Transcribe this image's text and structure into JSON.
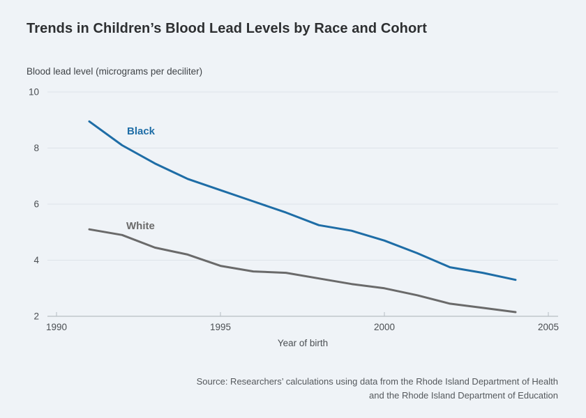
{
  "page": {
    "source_line1": "Source: Researchers’ calculations using data from the Rhode Island Department of Health",
    "source_line2": "and the Rhode Island Department of Education"
  },
  "chart_data": {
    "type": "line",
    "title": "Trends in Children’s Blood Lead Levels by Race and Cohort",
    "ylabel": "Blood lead level (micrograms per deciliter)",
    "xlabel": "Year of birth",
    "x": [
      1991,
      1992,
      1993,
      1994,
      1995,
      1996,
      1997,
      1998,
      1999,
      2000,
      2001,
      2002,
      2003,
      2004
    ],
    "series": [
      {
        "name": "Black",
        "color": "#1e6da6",
        "values": [
          8.95,
          8.1,
          7.45,
          6.9,
          6.5,
          6.1,
          5.7,
          5.25,
          5.05,
          4.7,
          4.25,
          3.75,
          3.55,
          3.3
        ]
      },
      {
        "name": "White",
        "color": "#6a6a6a",
        "values": [
          5.1,
          4.9,
          4.45,
          4.2,
          3.8,
          3.6,
          3.55,
          3.35,
          3.15,
          3.0,
          2.75,
          2.45,
          2.3,
          2.15
        ]
      }
    ],
    "xlim": [
      1990,
      2005
    ],
    "ylim": [
      2,
      10
    ],
    "xticks": [
      1990,
      1995,
      2000,
      2005
    ],
    "yticks": [
      2,
      4,
      6,
      8,
      10
    ],
    "grid": true,
    "legend_position": "inline-labels",
    "colors": {
      "background": "#eff3f7",
      "gridline": "#dde3e9",
      "axis_line": "#a9b0b6",
      "tick_mark": "#b6bdc3",
      "black_series": "#1e6da6",
      "white_series": "#6a6a6a"
    }
  }
}
